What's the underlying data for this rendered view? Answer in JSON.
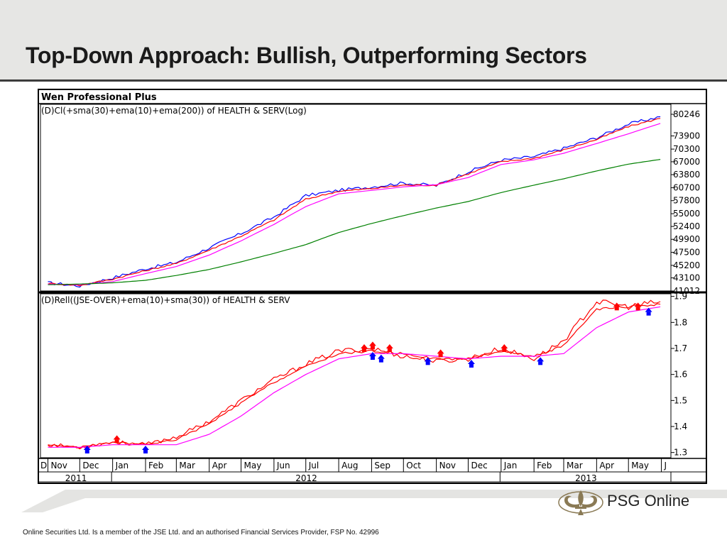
{
  "slide": {
    "title": "Top-Down Approach: Bullish, Outperforming Sectors",
    "footer": "Online Securities Ltd. Is a member of the JSE Ltd. and an authorised Financial Services Provider, FSP No. 42996",
    "brand": "PSG Online"
  },
  "colors": {
    "price": "#0000ff",
    "ema10": "#ff0000",
    "sma30": "#ff00ff",
    "ema200": "#008000",
    "rel": "#ff0000",
    "buy_arrow": "#0000ff",
    "sell_arrow": "#ff0000",
    "brand": "#8a7a55"
  },
  "chart_data": [
    {
      "type": "line",
      "software_title": "Wen Professional Plus",
      "title": "(D)Cl(+sma(30)+ema(10)+ema(200)) of HEALTH & SERV(Log)",
      "y_scale": "log",
      "yticks": [
        41012,
        43100,
        45200,
        47500,
        49900,
        52400,
        55000,
        57800,
        60700,
        63800,
        67000,
        70300,
        73900,
        80246
      ],
      "ylim": [
        41012,
        82000
      ],
      "x": [
        "2011-11-01",
        "2011-12-01",
        "2012-01-01",
        "2012-02-01",
        "2012-03-01",
        "2012-04-01",
        "2012-05-01",
        "2012-06-01",
        "2012-07-01",
        "2012-08-01",
        "2012-09-01",
        "2012-10-01",
        "2012-11-01",
        "2012-12-01",
        "2013-01-01",
        "2013-02-01",
        "2013-03-01",
        "2013-04-01",
        "2013-05-01",
        "2013-05-31"
      ],
      "series": [
        {
          "key": "price",
          "values": [
            42300,
            41800,
            43100,
            44600,
            45700,
            48300,
            51000,
            54300,
            58900,
            60100,
            60900,
            61800,
            61200,
            64500,
            67400,
            68300,
            70500,
            73400,
            77300,
            79500
          ]
        },
        {
          "key": "ema10",
          "values": [
            42200,
            41900,
            42900,
            44300,
            45500,
            47900,
            50500,
            53700,
            58100,
            59900,
            60500,
            61300,
            61300,
            64000,
            67000,
            67900,
            70100,
            72900,
            76600,
            79000
          ]
        },
        {
          "key": "sma30",
          "values": [
            42100,
            42000,
            42500,
            43800,
            45000,
            47000,
            49600,
            52800,
            56500,
            59300,
            60100,
            60900,
            61400,
            63100,
            66300,
            67500,
            69200,
            71800,
            74500,
            77500
          ]
        },
        {
          "key": "ema200",
          "values": [
            42000,
            42100,
            42300,
            42700,
            43500,
            44500,
            45800,
            47300,
            48900,
            51200,
            53000,
            54600,
            56200,
            57600,
            59600,
            61300,
            62800,
            64700,
            66400,
            67600
          ]
        }
      ]
    },
    {
      "type": "line",
      "title": "(D)Rell((JSE-OVER)+ema(10)+sma(30)) of HEALTH & SERV",
      "yticks": [
        1.3,
        1.4,
        1.5,
        1.6,
        1.7,
        1.8,
        1.9
      ],
      "ylim": [
        1.28,
        1.91
      ],
      "x": [
        "2011-11-01",
        "2011-12-01",
        "2012-01-01",
        "2012-02-01",
        "2012-03-01",
        "2012-04-01",
        "2012-05-01",
        "2012-06-01",
        "2012-07-01",
        "2012-08-01",
        "2012-09-01",
        "2012-10-01",
        "2012-11-01",
        "2012-12-01",
        "2013-01-01",
        "2013-02-01",
        "2013-03-01",
        "2013-04-01",
        "2013-05-01",
        "2013-05-31"
      ],
      "series": [
        {
          "key": "rel",
          "values": [
            1.33,
            1.32,
            1.34,
            1.33,
            1.36,
            1.42,
            1.5,
            1.58,
            1.64,
            1.69,
            1.7,
            1.67,
            1.65,
            1.66,
            1.7,
            1.66,
            1.73,
            1.88,
            1.86,
            1.88
          ]
        },
        {
          "key": "ema10",
          "values": [
            1.33,
            1.32,
            1.34,
            1.33,
            1.35,
            1.41,
            1.49,
            1.57,
            1.63,
            1.68,
            1.69,
            1.68,
            1.66,
            1.66,
            1.69,
            1.67,
            1.71,
            1.85,
            1.86,
            1.87
          ]
        },
        {
          "key": "sma30",
          "values": [
            1.32,
            1.32,
            1.33,
            1.33,
            1.33,
            1.37,
            1.44,
            1.53,
            1.6,
            1.66,
            1.68,
            1.68,
            1.67,
            1.66,
            1.67,
            1.67,
            1.68,
            1.78,
            1.84,
            1.86
          ]
        }
      ],
      "signals": [
        {
          "date": "2011-12-08",
          "type": "buy",
          "value": 1.31
        },
        {
          "date": "2012-01-05",
          "type": "sell",
          "value": 1.35
        },
        {
          "date": "2012-02-01",
          "type": "buy",
          "value": 1.31
        },
        {
          "date": "2012-08-25",
          "type": "sell",
          "value": 1.7
        },
        {
          "date": "2012-09-02",
          "type": "sell",
          "value": 1.71
        },
        {
          "date": "2012-09-02",
          "type": "buy",
          "value": 1.67
        },
        {
          "date": "2012-09-10",
          "type": "buy",
          "value": 1.66
        },
        {
          "date": "2012-09-18",
          "type": "sell",
          "value": 1.7
        },
        {
          "date": "2012-10-24",
          "type": "buy",
          "value": 1.65
        },
        {
          "date": "2012-11-05",
          "type": "sell",
          "value": 1.68
        },
        {
          "date": "2012-12-04",
          "type": "buy",
          "value": 1.64
        },
        {
          "date": "2013-01-04",
          "type": "sell",
          "value": 1.7
        },
        {
          "date": "2013-02-07",
          "type": "buy",
          "value": 1.65
        },
        {
          "date": "2013-04-20",
          "type": "sell",
          "value": 1.86
        },
        {
          "date": "2013-05-10",
          "type": "sell",
          "value": 1.86
        },
        {
          "date": "2013-05-20",
          "type": "buy",
          "value": 1.84
        }
      ]
    }
  ],
  "x_axis": {
    "months": [
      {
        "label": "Nov",
        "date": "2011-11-01"
      },
      {
        "label": "Dec",
        "date": "2011-12-01"
      },
      {
        "label": "Jan",
        "date": "2012-01-01"
      },
      {
        "label": "Feb",
        "date": "2012-02-01"
      },
      {
        "label": "Mar",
        "date": "2012-03-01"
      },
      {
        "label": "Apr",
        "date": "2012-04-01"
      },
      {
        "label": "May",
        "date": "2012-05-01"
      },
      {
        "label": "Jun",
        "date": "2012-06-01"
      },
      {
        "label": "Jul",
        "date": "2012-07-01"
      },
      {
        "label": "Aug",
        "date": "2012-08-01"
      },
      {
        "label": "Sep",
        "date": "2012-09-01"
      },
      {
        "label": "Oct",
        "date": "2012-10-01"
      },
      {
        "label": "Nov",
        "date": "2012-11-01"
      },
      {
        "label": "Dec",
        "date": "2012-12-01"
      },
      {
        "label": "Jan",
        "date": "2013-01-01"
      },
      {
        "label": "Feb",
        "date": "2013-02-01"
      },
      {
        "label": "Mar",
        "date": "2013-03-01"
      },
      {
        "label": "Apr",
        "date": "2013-04-01"
      },
      {
        "label": "May",
        "date": "2013-05-01"
      },
      {
        "label": "J",
        "date": "2013-06-01"
      }
    ],
    "years": [
      {
        "label": "2011",
        "from": "2011-10-25",
        "to": "2011-12-31"
      },
      {
        "label": "2012",
        "from": "2012-01-01",
        "to": "2012-12-31"
      },
      {
        "label": "2013",
        "from": "2013-01-01",
        "to": "2013-06-10"
      }
    ]
  }
}
